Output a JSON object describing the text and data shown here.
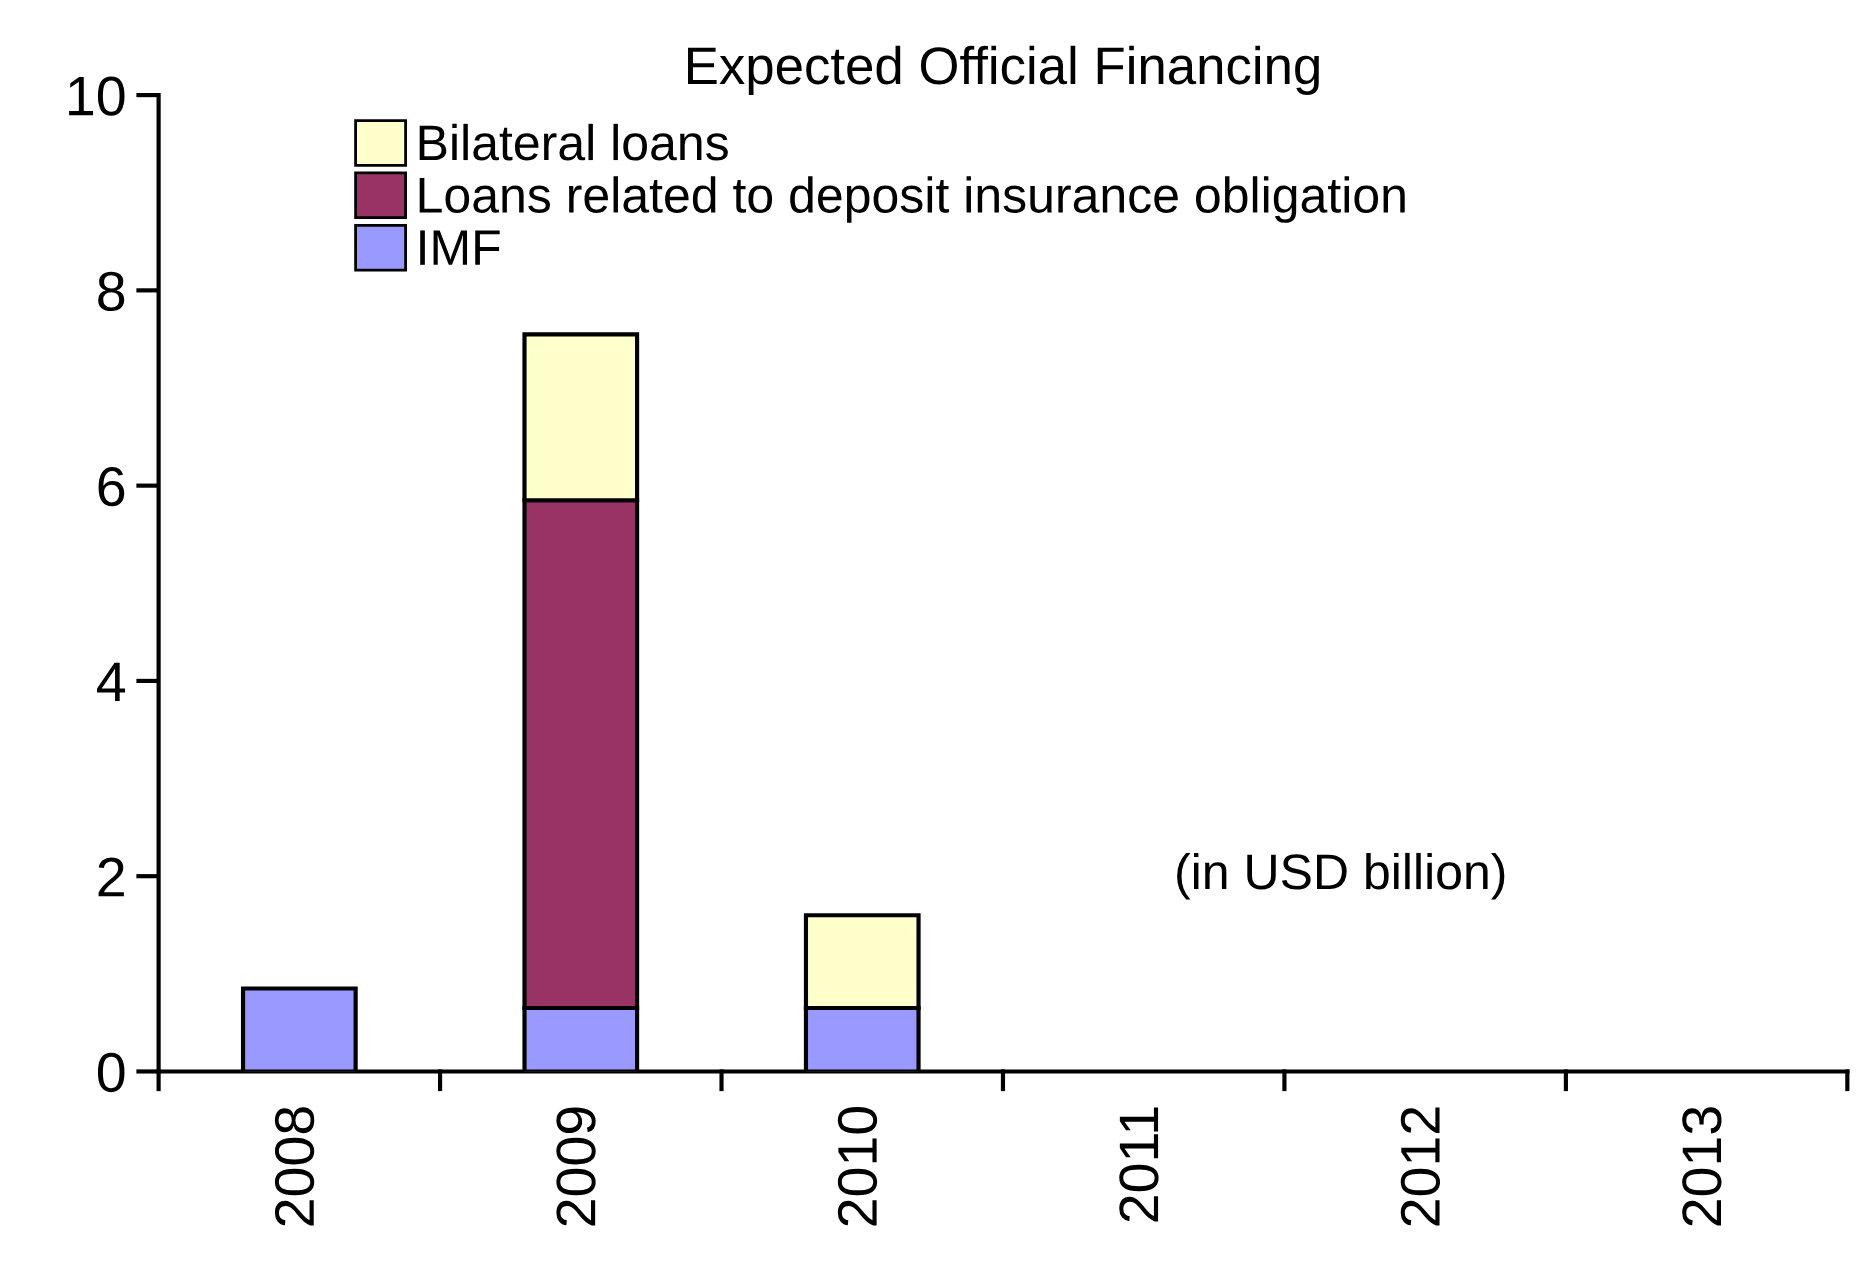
{
  "chart_data": {
    "type": "bar",
    "title": "Expected Official Financing",
    "categories": [
      "2008",
      "2009",
      "2010",
      "2011",
      "2012",
      "2013"
    ],
    "stacked": true,
    "series": [
      {
        "name": "IMF",
        "color": "#9999ff",
        "values": [
          0.85,
          0.65,
          0.65,
          0,
          0,
          0
        ]
      },
      {
        "name": "Loans related to deposit insurance obligation",
        "color": "#993366",
        "values": [
          0,
          5.2,
          0,
          0,
          0,
          0
        ]
      },
      {
        "name": "Bilateral loans",
        "color": "#ffffcc",
        "values": [
          0,
          1.7,
          0.95,
          0,
          0,
          0
        ]
      }
    ],
    "ylim": [
      0,
      10
    ],
    "yticks": [
      0,
      2,
      4,
      6,
      8,
      10
    ],
    "grid": false,
    "legend": "top left",
    "annotations": [
      "(in USD billion)"
    ]
  }
}
